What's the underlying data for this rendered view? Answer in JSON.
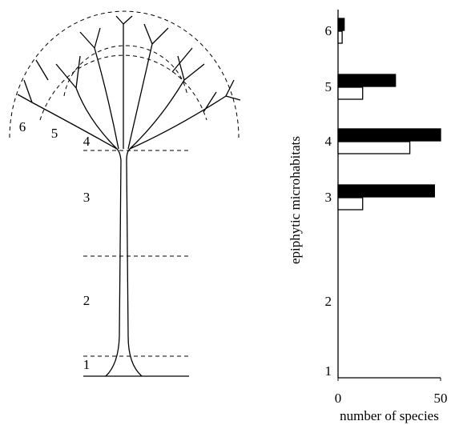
{
  "tree_zones": [
    "1",
    "2",
    "3",
    "4",
    "5",
    "6"
  ],
  "chart_data": {
    "type": "bar",
    "orientation": "horizontal",
    "xlabel": "number of species",
    "ylabel": "epiphytic microhabitats",
    "categories": [
      "1",
      "2",
      "3",
      "4",
      "5",
      "6"
    ],
    "series": [
      {
        "color": "#000000",
        "values": [
          0,
          0,
          47,
          50,
          28,
          3
        ]
      },
      {
        "color": "#ffffff",
        "values": [
          0,
          0,
          12,
          35,
          12,
          2
        ]
      }
    ],
    "xlim": [
      0,
      50
    ],
    "xticks": [
      0,
      50
    ]
  }
}
